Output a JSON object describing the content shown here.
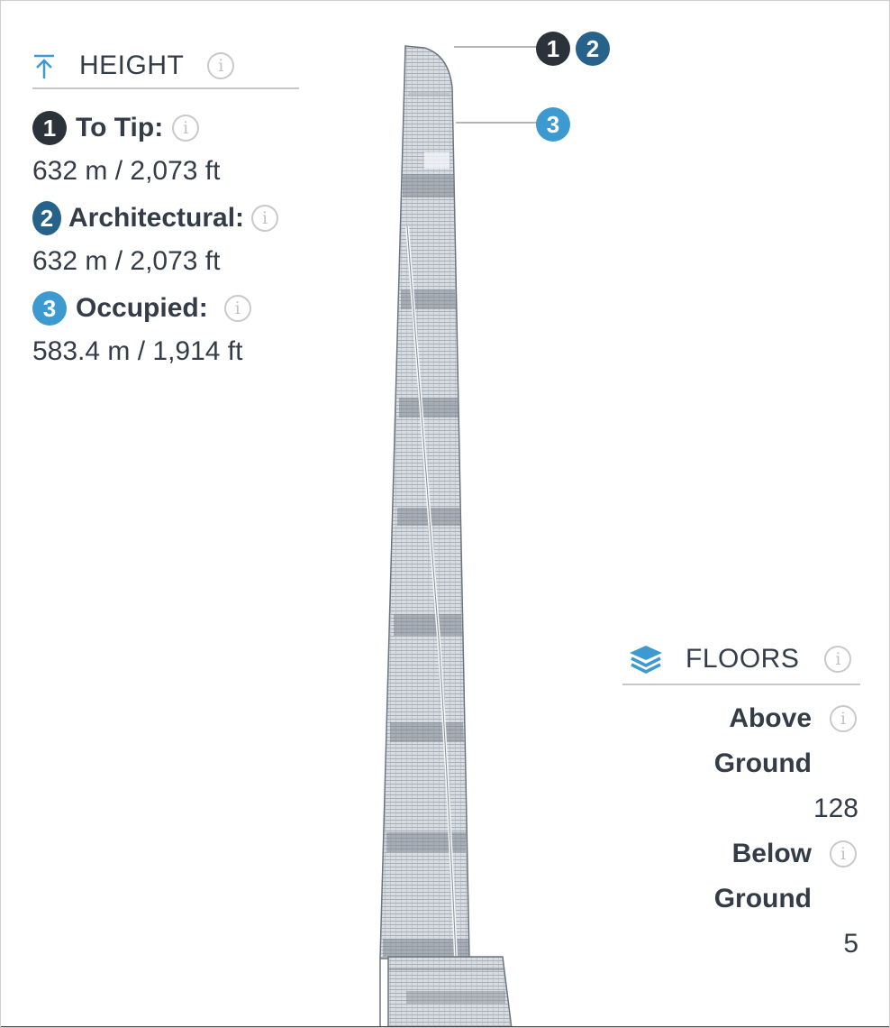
{
  "height": {
    "title": "HEIGHT",
    "to_tip": {
      "label": "To Tip:",
      "value": "632 m / 2,073 ft",
      "badge": "1"
    },
    "architectural": {
      "label": "Architectural:",
      "value": "632 m / 2,073 ft",
      "badge": "2"
    },
    "occupied": {
      "label": "Occupied:",
      "value": "583.4 m / 1,914 ft",
      "badge": "3"
    }
  },
  "floors": {
    "title": "FLOORS",
    "above_label_1": "Above",
    "above_label_2": "Ground",
    "above_value": "128",
    "below_label_1": "Below",
    "below_label_2": "Ground",
    "below_value": "5"
  },
  "info_glyph": "i",
  "colors": {
    "badge_1": "#2b323a",
    "badge_2": "#26628a",
    "badge_3": "#3d9ad0",
    "accent_blue": "#3d9ad0",
    "text": "#343d47",
    "divider": "#c8c8c8"
  },
  "icons": {
    "height": "arrow-up-to-line-icon",
    "floors": "layers-icon",
    "info": "info-circle-icon"
  }
}
